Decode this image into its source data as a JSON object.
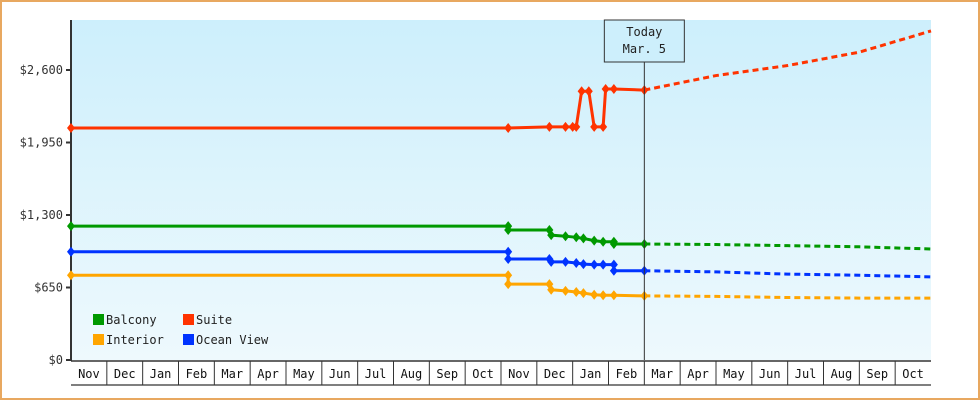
{
  "chart_data": {
    "type": "line",
    "title": "",
    "xlabel": "",
    "ylabel": "",
    "ylim": [
      0,
      2900
    ],
    "yticks": [
      {
        "value": 0,
        "label": "$0"
      },
      {
        "value": 650,
        "label": "$650"
      },
      {
        "value": 1300,
        "label": "$1,300"
      },
      {
        "value": 1950,
        "label": "$1,950"
      },
      {
        "value": 2600,
        "label": "$2,600"
      }
    ],
    "x_months": [
      "Nov",
      "Dec",
      "Jan",
      "Feb",
      "Mar",
      "Apr",
      "May",
      "Jun",
      "Jul",
      "Aug",
      "Sep",
      "Oct",
      "Nov",
      "Dec",
      "Jan",
      "Feb",
      "Mar",
      "Apr",
      "May",
      "Jun",
      "Jul",
      "Aug",
      "Sep",
      "Oct"
    ],
    "today_marker": {
      "line1": "Today",
      "line2": "Mar. 5",
      "month_index": 16.0
    },
    "legend": {
      "position": "lower-left",
      "entries": [
        {
          "name": "Balcony",
          "color": "#009900"
        },
        {
          "name": "Suite",
          "color": "#ff3300"
        },
        {
          "name": "Interior",
          "color": "#ffa500"
        },
        {
          "name": "Ocean View",
          "color": "#0033ff"
        }
      ]
    },
    "series": [
      {
        "name": "Suite",
        "color": "#ff3300",
        "history": [
          [
            0,
            2080
          ],
          [
            12.2,
            2080
          ],
          [
            13.35,
            2090
          ],
          [
            13.8,
            2090
          ],
          [
            14.0,
            2090
          ],
          [
            14.1,
            2090
          ],
          [
            14.25,
            2410
          ],
          [
            14.45,
            2410
          ],
          [
            14.6,
            2090
          ],
          [
            14.85,
            2090
          ],
          [
            14.92,
            2430
          ],
          [
            15.15,
            2430
          ],
          [
            16.0,
            2420
          ]
        ],
        "projection": [
          [
            16.0,
            2420
          ],
          [
            18.0,
            2550
          ],
          [
            20.0,
            2640
          ],
          [
            22.0,
            2760
          ],
          [
            24.0,
            2950
          ]
        ]
      },
      {
        "name": "Balcony",
        "color": "#009900",
        "history": [
          [
            0,
            1200
          ],
          [
            12.2,
            1200
          ],
          [
            12.2,
            1165
          ],
          [
            13.35,
            1165
          ],
          [
            13.4,
            1120
          ],
          [
            13.8,
            1110
          ],
          [
            14.1,
            1100
          ],
          [
            14.3,
            1090
          ],
          [
            14.6,
            1070
          ],
          [
            14.85,
            1060
          ],
          [
            15.15,
            1060
          ],
          [
            15.15,
            1040
          ],
          [
            16.0,
            1040
          ]
        ],
        "projection": [
          [
            16.0,
            1040
          ],
          [
            18.0,
            1035
          ],
          [
            20.0,
            1025
          ],
          [
            22.0,
            1015
          ],
          [
            24.0,
            995
          ]
        ]
      },
      {
        "name": "Ocean View",
        "color": "#0033ff",
        "history": [
          [
            0,
            970
          ],
          [
            12.2,
            970
          ],
          [
            12.2,
            905
          ],
          [
            13.35,
            905
          ],
          [
            13.4,
            880
          ],
          [
            13.8,
            880
          ],
          [
            14.1,
            870
          ],
          [
            14.3,
            860
          ],
          [
            14.6,
            855
          ],
          [
            14.85,
            855
          ],
          [
            15.15,
            855
          ],
          [
            15.15,
            800
          ],
          [
            16.0,
            800
          ]
        ],
        "projection": [
          [
            16.0,
            800
          ],
          [
            18.0,
            790
          ],
          [
            20.0,
            770
          ],
          [
            22.0,
            760
          ],
          [
            24.0,
            745
          ]
        ]
      },
      {
        "name": "Interior",
        "color": "#ffa500",
        "history": [
          [
            0,
            760
          ],
          [
            12.2,
            760
          ],
          [
            12.2,
            680
          ],
          [
            13.35,
            680
          ],
          [
            13.4,
            630
          ],
          [
            13.8,
            620
          ],
          [
            14.1,
            610
          ],
          [
            14.3,
            600
          ],
          [
            14.6,
            585
          ],
          [
            14.85,
            580
          ],
          [
            15.15,
            580
          ],
          [
            16.0,
            575
          ]
        ],
        "projection": [
          [
            16.0,
            575
          ],
          [
            18.0,
            570
          ],
          [
            20.0,
            560
          ],
          [
            22.0,
            555
          ],
          [
            24.0,
            555
          ]
        ]
      }
    ]
  },
  "legend": {
    "balcony": "Balcony",
    "suite": "Suite",
    "interior": "Interior",
    "ocean_view": "Ocean View"
  },
  "today": {
    "line1": "Today",
    "line2": "Mar. 5"
  },
  "yaxis": [
    "$0",
    "$650",
    "$1,300",
    "$1,950",
    "$2,600"
  ],
  "months": [
    "Nov",
    "Dec",
    "Jan",
    "Feb",
    "Mar",
    "Apr",
    "May",
    "Jun",
    "Jul",
    "Aug",
    "Sep",
    "Oct",
    "Nov",
    "Dec",
    "Jan",
    "Feb",
    "Mar",
    "Apr",
    "May",
    "Jun",
    "Jul",
    "Aug",
    "Sep",
    "Oct"
  ]
}
